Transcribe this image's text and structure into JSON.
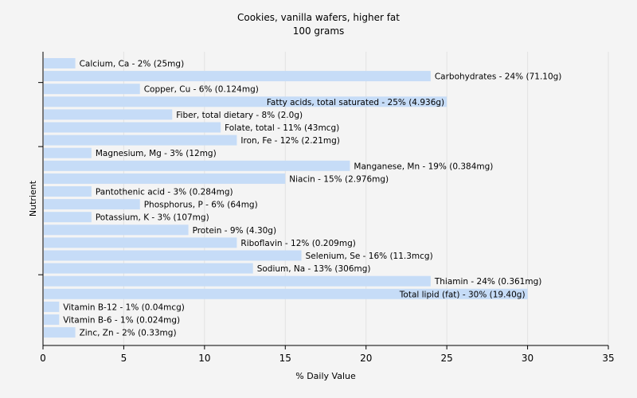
{
  "chart_data": {
    "type": "bar",
    "orientation": "horizontal",
    "title": "Cookies, vanilla wafers, higher fat",
    "subtitle": "100 grams",
    "xlabel": "% Daily Value",
    "ylabel": "Nutrient",
    "xlim": [
      0,
      35
    ],
    "xticks": [
      0,
      5,
      10,
      15,
      20,
      25,
      30,
      35
    ],
    "grid": true,
    "bar_color": "#c6dcf7",
    "categories": [
      "Calcium, Ca",
      "Carbohydrates",
      "Copper, Cu",
      "Fatty acids, total saturated",
      "Fiber, total dietary",
      "Folate, total",
      "Iron, Fe",
      "Magnesium, Mg",
      "Manganese, Mn",
      "Niacin",
      "Pantothenic acid",
      "Phosphorus, P",
      "Potassium, K",
      "Protein",
      "Riboflavin",
      "Selenium, Se",
      "Sodium, Na",
      "Thiamin",
      "Total lipid (fat)",
      "Vitamin B-12",
      "Vitamin B-6",
      "Zinc, Zn"
    ],
    "values": [
      2,
      24,
      6,
      25,
      8,
      11,
      12,
      3,
      19,
      15,
      3,
      6,
      3,
      9,
      12,
      16,
      13,
      24,
      30,
      1,
      1,
      2
    ],
    "labels": [
      "Calcium, Ca - 2% (25mg)",
      "Carbohydrates - 24% (71.10g)",
      "Copper, Cu - 6% (0.124mg)",
      "Fatty acids, total saturated - 25% (4.936g)",
      "Fiber, total dietary - 8% (2.0g)",
      "Folate, total - 11% (43mcg)",
      "Iron, Fe - 12% (2.21mg)",
      "Magnesium, Mg - 3% (12mg)",
      "Manganese, Mn - 19% (0.384mg)",
      "Niacin - 15% (2.976mg)",
      "Pantothenic acid - 3% (0.284mg)",
      "Phosphorus, P - 6% (64mg)",
      "Potassium, K - 3% (107mg)",
      "Protein - 9% (4.30g)",
      "Riboflavin - 12% (0.209mg)",
      "Selenium, Se - 16% (11.3mcg)",
      "Sodium, Na - 13% (306mg)",
      "Thiamin - 24% (0.361mg)",
      "Total lipid (fat) - 30% (19.40g)",
      "Vitamin B-12 - 1% (0.04mcg)",
      "Vitamin B-6 - 1% (0.024mg)",
      "Zinc, Zn - 2% (0.33mg)"
    ]
  }
}
